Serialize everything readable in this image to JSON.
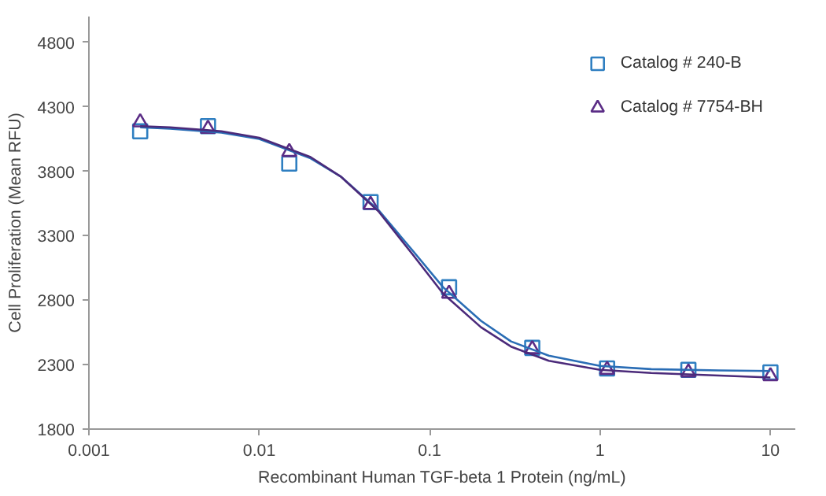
{
  "chart_data": {
    "type": "scatter",
    "xlabel": "Recombinant Human TGF-beta 1 Protein (ng/mL)",
    "ylabel": "Cell Proliferation (Mean RFU)",
    "log": "x",
    "xlim": [
      0.001,
      14
    ],
    "xticks": [
      0.001,
      0.01,
      0.1,
      1,
      10
    ],
    "ylim": [
      1800,
      5000
    ],
    "yticks": [
      1800,
      2300,
      2800,
      3300,
      3800,
      4300,
      4800
    ],
    "grid": false,
    "legend": "top right",
    "series": [
      {
        "name": "Catalog # 240-B",
        "color": "#2f7fc1",
        "marker": "square",
        "x": [
          0.002,
          0.005,
          0.015,
          0.045,
          0.13,
          0.4,
          1.1,
          3.3,
          10
        ],
        "values": [
          4110,
          4150,
          3860,
          3560,
          2900,
          2430,
          2270,
          2260,
          2240
        ]
      },
      {
        "name": "Catalog # 7754-BH",
        "color": "#5b2d86",
        "marker": "triangle",
        "x": [
          0.002,
          0.005,
          0.015,
          0.045,
          0.13,
          0.4,
          1.1,
          3.3,
          10
        ],
        "values": [
          4180,
          4130,
          3950,
          3540,
          2850,
          2420,
          2260,
          2240,
          2210
        ]
      },
      {
        "type": "line",
        "color": "#2a6db5",
        "x": [
          0.002,
          0.003,
          0.006,
          0.01,
          0.02,
          0.03,
          0.05,
          0.08,
          0.12,
          0.2,
          0.3,
          0.5,
          1,
          2,
          5,
          10
        ],
        "values": [
          4140,
          4130,
          4100,
          4050,
          3900,
          3760,
          3500,
          3180,
          2900,
          2640,
          2480,
          2370,
          2290,
          2265,
          2255,
          2250
        ]
      },
      {
        "type": "line",
        "color": "#4b2a7a",
        "x": [
          0.002,
          0.003,
          0.006,
          0.01,
          0.02,
          0.03,
          0.05,
          0.08,
          0.12,
          0.2,
          0.3,
          0.5,
          1,
          2,
          5,
          10
        ],
        "values": [
          4150,
          4140,
          4110,
          4060,
          3910,
          3760,
          3490,
          3150,
          2850,
          2590,
          2440,
          2330,
          2260,
          2235,
          2215,
          2200
        ]
      }
    ]
  }
}
